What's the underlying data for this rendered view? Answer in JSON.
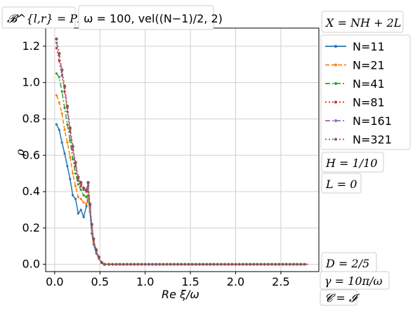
{
  "chart_data": {
    "type": "line",
    "xlabel": "Re ξ/ω",
    "ylabel": "ρ",
    "xlim": [
      -0.1,
      2.92
    ],
    "ylim": [
      -0.04,
      1.3
    ],
    "xticks": [
      0.0,
      0.5,
      1.0,
      1.5,
      2.0,
      2.5
    ],
    "xtick_labels": [
      "0.0",
      "0.5",
      "1.0",
      "1.5",
      "2.0",
      "2.5"
    ],
    "yticks": [
      0.0,
      0.2,
      0.4,
      0.6,
      0.8,
      1.0,
      1.2
    ],
    "ytick_labels": [
      "0.0",
      "0.2",
      "0.4",
      "0.6",
      "0.8",
      "1.0",
      "1.2"
    ],
    "grid": true,
    "legend_position": "right-top, outside plot",
    "series": [
      {
        "name": "N=11",
        "color": "#1f77b4",
        "dash": "solid",
        "marker": "point",
        "points": [
          [
            0.02,
            0.77
          ],
          [
            0.05,
            0.74
          ],
          [
            0.08,
            0.67
          ],
          [
            0.11,
            0.61
          ],
          [
            0.14,
            0.54
          ],
          [
            0.17,
            0.47
          ],
          [
            0.2,
            0.38
          ],
          [
            0.23,
            0.36
          ],
          [
            0.26,
            0.28
          ],
          [
            0.29,
            0.3
          ],
          [
            0.32,
            0.26
          ],
          [
            0.35,
            0.32
          ],
          [
            0.37,
            0.37
          ],
          [
            0.39,
            0.29
          ],
          [
            0.41,
            0.17
          ],
          [
            0.43,
            0.11
          ],
          [
            0.46,
            0.06
          ],
          [
            0.49,
            0.03
          ],
          [
            0.52,
            0.01
          ],
          [
            0.55,
            0.0
          ],
          [
            2.8,
            0.0
          ]
        ]
      },
      {
        "name": "N=21",
        "color": "#ff7f0e",
        "dash": "dashed",
        "marker": "point",
        "points": [
          [
            0.02,
            0.93
          ],
          [
            0.05,
            0.89
          ],
          [
            0.08,
            0.83
          ],
          [
            0.11,
            0.74
          ],
          [
            0.14,
            0.67
          ],
          [
            0.17,
            0.59
          ],
          [
            0.2,
            0.5
          ],
          [
            0.23,
            0.43
          ],
          [
            0.26,
            0.37
          ],
          [
            0.29,
            0.36
          ],
          [
            0.32,
            0.34
          ],
          [
            0.35,
            0.33
          ],
          [
            0.37,
            0.38
          ],
          [
            0.39,
            0.3
          ],
          [
            0.41,
            0.19
          ],
          [
            0.43,
            0.12
          ],
          [
            0.46,
            0.07
          ],
          [
            0.49,
            0.03
          ],
          [
            0.52,
            0.01
          ],
          [
            0.55,
            0.0
          ],
          [
            2.8,
            0.0
          ]
        ]
      },
      {
        "name": "N=41",
        "color": "#2ca02c",
        "dash": "dashdot",
        "marker": "point",
        "points": [
          [
            0.02,
            1.05
          ],
          [
            0.05,
            1.03
          ],
          [
            0.08,
            0.95
          ],
          [
            0.11,
            0.86
          ],
          [
            0.14,
            0.77
          ],
          [
            0.17,
            0.68
          ],
          [
            0.2,
            0.58
          ],
          [
            0.23,
            0.5
          ],
          [
            0.26,
            0.44
          ],
          [
            0.29,
            0.41
          ],
          [
            0.32,
            0.38
          ],
          [
            0.35,
            0.37
          ],
          [
            0.37,
            0.4
          ],
          [
            0.39,
            0.31
          ],
          [
            0.41,
            0.2
          ],
          [
            0.43,
            0.13
          ],
          [
            0.46,
            0.07
          ],
          [
            0.49,
            0.03
          ],
          [
            0.52,
            0.01
          ],
          [
            0.55,
            0.0
          ],
          [
            2.8,
            0.0
          ]
        ]
      },
      {
        "name": "N=81",
        "color": "#d62728",
        "dash": "dotted",
        "marker": "point",
        "points": [
          [
            0.02,
            1.19
          ],
          [
            0.05,
            1.12
          ],
          [
            0.08,
            1.04
          ],
          [
            0.11,
            0.95
          ],
          [
            0.14,
            0.84
          ],
          [
            0.17,
            0.73
          ],
          [
            0.2,
            0.63
          ],
          [
            0.23,
            0.54
          ],
          [
            0.26,
            0.46
          ],
          [
            0.29,
            0.43
          ],
          [
            0.32,
            0.41
          ],
          [
            0.35,
            0.4
          ],
          [
            0.37,
            0.43
          ],
          [
            0.39,
            0.32
          ],
          [
            0.41,
            0.21
          ],
          [
            0.43,
            0.13
          ],
          [
            0.46,
            0.07
          ],
          [
            0.49,
            0.03
          ],
          [
            0.52,
            0.01
          ],
          [
            0.55,
            0.0
          ],
          [
            2.8,
            0.0
          ]
        ]
      },
      {
        "name": "N=161",
        "color": "#9467bd",
        "dash": "dashdot",
        "marker": "point",
        "points": [
          [
            0.02,
            1.22
          ],
          [
            0.05,
            1.15
          ],
          [
            0.08,
            1.06
          ],
          [
            0.11,
            0.97
          ],
          [
            0.14,
            0.86
          ],
          [
            0.17,
            0.74
          ],
          [
            0.2,
            0.64
          ],
          [
            0.23,
            0.55
          ],
          [
            0.26,
            0.47
          ],
          [
            0.29,
            0.44
          ],
          [
            0.32,
            0.41
          ],
          [
            0.35,
            0.41
          ],
          [
            0.37,
            0.44
          ],
          [
            0.39,
            0.32
          ],
          [
            0.41,
            0.21
          ],
          [
            0.43,
            0.13
          ],
          [
            0.46,
            0.07
          ],
          [
            0.49,
            0.03
          ],
          [
            0.52,
            0.01
          ],
          [
            0.55,
            0.0
          ],
          [
            2.8,
            0.0
          ]
        ]
      },
      {
        "name": "N=321",
        "color": "#8c564b",
        "dash": "dotted",
        "marker": "dot",
        "points": [
          [
            0.02,
            1.24
          ],
          [
            0.05,
            1.16
          ],
          [
            0.08,
            1.07
          ],
          [
            0.11,
            0.98
          ],
          [
            0.14,
            0.87
          ],
          [
            0.17,
            0.75
          ],
          [
            0.2,
            0.65
          ],
          [
            0.23,
            0.56
          ],
          [
            0.26,
            0.48
          ],
          [
            0.29,
            0.45
          ],
          [
            0.32,
            0.42
          ],
          [
            0.35,
            0.41
          ],
          [
            0.37,
            0.45
          ],
          [
            0.39,
            0.33
          ],
          [
            0.41,
            0.22
          ],
          [
            0.43,
            0.14
          ],
          [
            0.46,
            0.08
          ],
          [
            0.49,
            0.04
          ],
          [
            0.52,
            0.01
          ],
          [
            0.55,
            0.0
          ],
          [
            2.8,
            0.0
          ]
        ]
      }
    ],
    "annotations": {
      "bc": "𝓑^{l,r} = PML",
      "params": "ω = 100, vel((N−1)/2, 2)",
      "x_formula": "X = NH + 2L",
      "h": "H = 1/10",
      "l": "L = 0",
      "d": "D = 2/5",
      "gamma": "γ = 10π/ω",
      "c": "𝓒 = 𝓘"
    }
  }
}
